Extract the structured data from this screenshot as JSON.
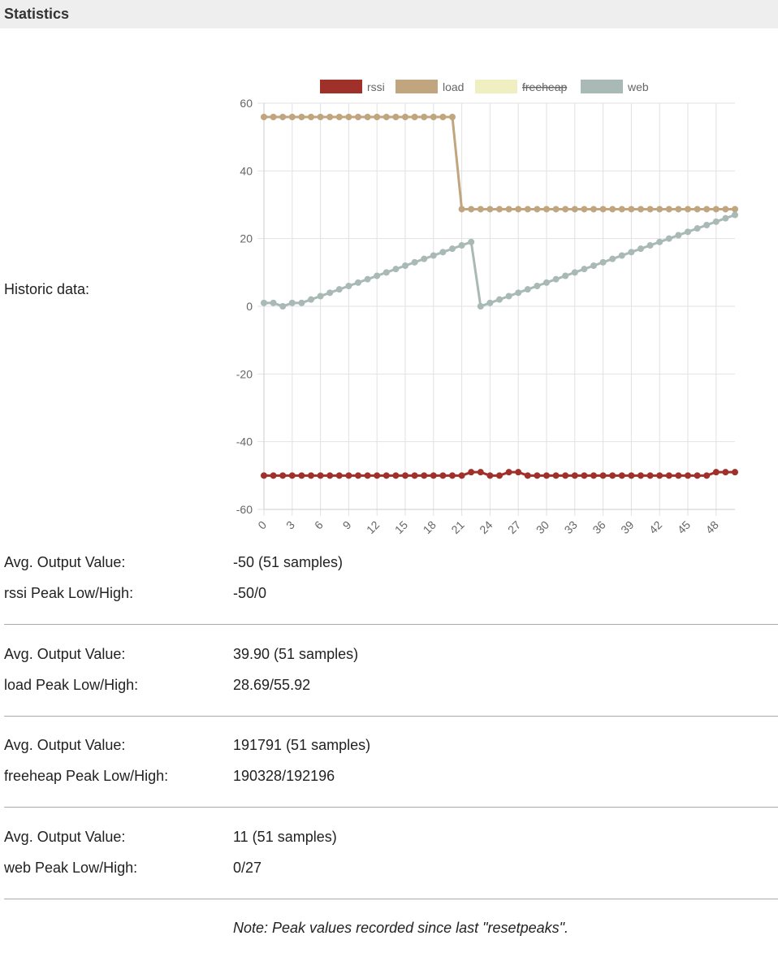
{
  "header": {
    "title": "Statistics"
  },
  "chart_label": "Historic data:",
  "chart_data": {
    "type": "line",
    "x": [
      0,
      1,
      2,
      3,
      4,
      5,
      6,
      7,
      8,
      9,
      10,
      11,
      12,
      13,
      14,
      15,
      16,
      17,
      18,
      19,
      20,
      21,
      22,
      23,
      24,
      25,
      26,
      27,
      28,
      29,
      30,
      31,
      32,
      33,
      34,
      35,
      36,
      37,
      38,
      39,
      40,
      41,
      42,
      43,
      44,
      45,
      46,
      47,
      48,
      49,
      50
    ],
    "xlim": [
      0,
      50
    ],
    "xticks": [
      0,
      3,
      6,
      9,
      12,
      15,
      18,
      21,
      24,
      27,
      30,
      33,
      36,
      39,
      42,
      45,
      48
    ],
    "ylim": [
      -60,
      60
    ],
    "yticks": [
      -60,
      -40,
      -20,
      0,
      20,
      40,
      60
    ],
    "grid": true,
    "legend": "top",
    "series": [
      {
        "name": "rssi",
        "color": "#a0302a",
        "values": [
          -50,
          -50,
          -50,
          -50,
          -50,
          -50,
          -50,
          -50,
          -50,
          -50,
          -50,
          -50,
          -50,
          -50,
          -50,
          -50,
          -50,
          -50,
          -50,
          -50,
          -50,
          -50,
          -49,
          -49,
          -50,
          -50,
          -49,
          -49,
          -50,
          -50,
          -50,
          -50,
          -50,
          -50,
          -50,
          -50,
          -50,
          -50,
          -50,
          -50,
          -50,
          -50,
          -50,
          -50,
          -50,
          -50,
          -50,
          -50,
          -49,
          -49,
          -49
        ]
      },
      {
        "name": "load",
        "color": "#c0a57e",
        "values": [
          55.92,
          55.92,
          55.92,
          55.92,
          55.92,
          55.92,
          55.92,
          55.92,
          55.92,
          55.92,
          55.92,
          55.92,
          55.92,
          55.92,
          55.92,
          55.92,
          55.92,
          55.92,
          55.92,
          55.92,
          55.92,
          28.69,
          28.69,
          28.69,
          28.69,
          28.69,
          28.69,
          28.69,
          28.69,
          28.69,
          28.69,
          28.69,
          28.69,
          28.69,
          28.69,
          28.69,
          28.69,
          28.69,
          28.69,
          28.69,
          28.69,
          28.69,
          28.69,
          28.69,
          28.69,
          28.69,
          28.69,
          28.69,
          28.69,
          28.69,
          28.69
        ]
      },
      {
        "name": "freeheap",
        "color": "#f0efc2",
        "hidden": true
      },
      {
        "name": "web",
        "color": "#a8b9b6",
        "values": [
          1,
          1,
          0,
          1,
          1,
          2,
          3,
          4,
          5,
          6,
          7,
          8,
          9,
          10,
          11,
          12,
          13,
          14,
          15,
          16,
          17,
          18,
          19,
          0,
          1,
          2,
          3,
          4,
          5,
          6,
          7,
          8,
          9,
          10,
          11,
          12,
          13,
          14,
          15,
          16,
          17,
          18,
          19,
          20,
          21,
          22,
          23,
          24,
          25,
          26,
          27
        ]
      }
    ]
  },
  "stats": [
    {
      "rows": [
        [
          "Avg. Output Value:",
          "-50 (51 samples)"
        ],
        [
          "rssi Peak Low/High:",
          "-50/0"
        ]
      ]
    },
    {
      "rows": [
        [
          "Avg. Output Value:",
          "39.90 (51 samples)"
        ],
        [
          "load Peak Low/High:",
          "28.69/55.92"
        ]
      ]
    },
    {
      "rows": [
        [
          "Avg. Output Value:",
          "191791 (51 samples)"
        ],
        [
          "freeheap Peak Low/High:",
          "190328/192196"
        ]
      ]
    },
    {
      "rows": [
        [
          "Avg. Output Value:",
          "11 (51 samples)"
        ],
        [
          "web Peak Low/High:",
          "0/27"
        ]
      ]
    }
  ],
  "note": "Note: Peak values recorded since last \"resetpeaks\"."
}
